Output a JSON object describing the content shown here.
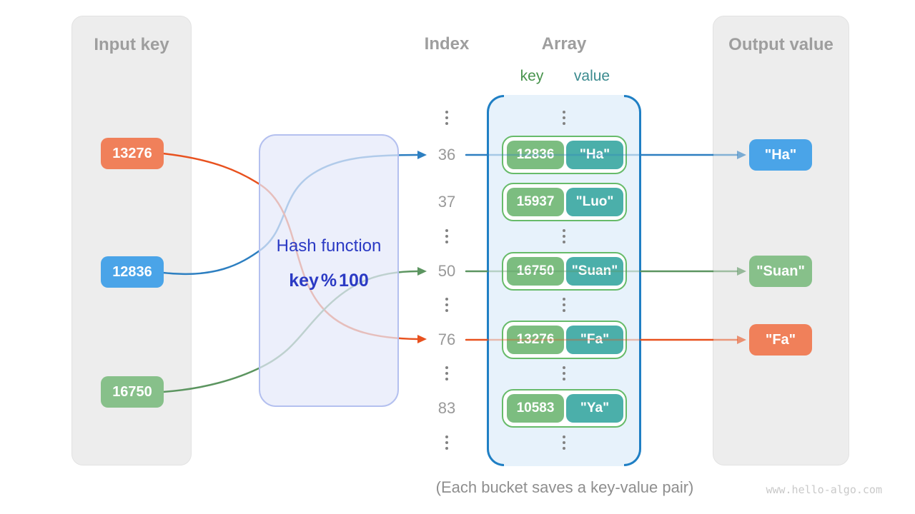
{
  "headers": {
    "input": "Input key",
    "index": "Index",
    "array": "Array",
    "output": "Output value",
    "key_label": "key",
    "value_label": "value"
  },
  "hash": {
    "title": "Hash function",
    "formula": "key % 100"
  },
  "input_keys": [
    {
      "value": "13276",
      "color": "orange"
    },
    {
      "value": "12836",
      "color": "blue"
    },
    {
      "value": "16750",
      "color": "green"
    }
  ],
  "buckets": [
    {
      "index": "36",
      "key": "12836",
      "value": "\"Ha\"",
      "arrow": "blue"
    },
    {
      "index": "37",
      "key": "15937",
      "value": "\"Luo\"",
      "arrow": null
    },
    {
      "index": "50",
      "key": "16750",
      "value": "\"Suan\"",
      "arrow": "green"
    },
    {
      "index": "76",
      "key": "13276",
      "value": "\"Fa\"",
      "arrow": "orange"
    },
    {
      "index": "83",
      "key": "10583",
      "value": "\"Ya\"",
      "arrow": null
    }
  ],
  "output_values": [
    {
      "value": "\"Ha\"",
      "color": "blue"
    },
    {
      "value": "\"Suan\"",
      "color": "green"
    },
    {
      "value": "\"Fa\"",
      "color": "orange"
    }
  ],
  "caption": "(Each bucket saves a key-value pair)",
  "watermark": "www.hello-algo.com",
  "palette": {
    "orange_box": "#F0805A",
    "blue_box": "#4AA4E8",
    "green_box": "#87C08A",
    "orange_line": "#E8511E",
    "blue_line": "#2D7FC1",
    "green_line": "#5C9560",
    "key_pill": "#7CBD80",
    "value_pill": "#4BAFAA",
    "bucket_border": "#67BB6A",
    "array_bg": "#E7F2FB",
    "array_bracket": "#1F7FC4",
    "hash_bg": "rgba(228,233,250,0.72)",
    "hash_border": "#B4C0EF",
    "hash_text": "#2B3AC4",
    "panel_bg": "#EDEDED",
    "heading_text": "#9E9E9E",
    "index_text": "#999999",
    "key_label": "#47934C",
    "value_label": "#3B8B8F",
    "caption_text": "#8E8E8E",
    "watermark_text": "#C9C9C9"
  }
}
